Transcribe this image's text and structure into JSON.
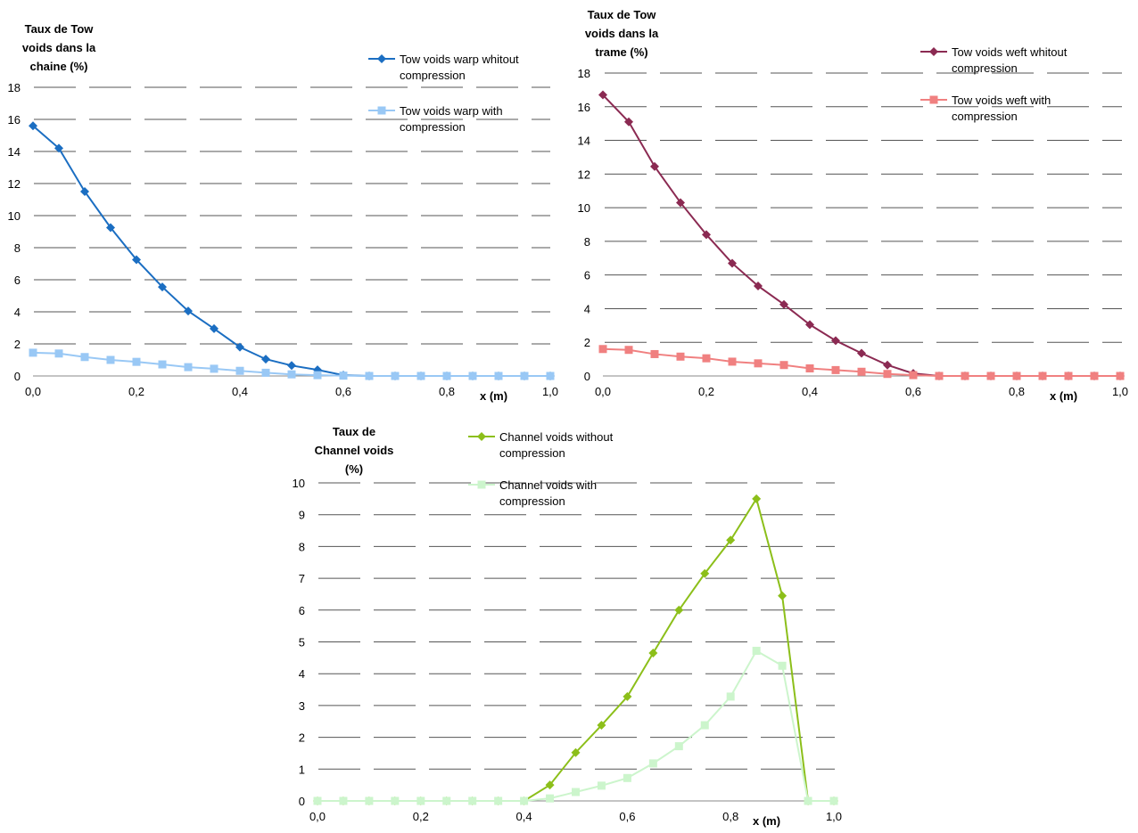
{
  "chart_data": [
    {
      "type": "line",
      "ylabel_lines": [
        "Taux de Tow",
        "voids dans la",
        "chaine (%)"
      ],
      "xlabel": "x (m)",
      "xlim": [
        0,
        1
      ],
      "ylim": [
        0,
        18
      ],
      "x_ticks": [
        "0,0",
        "0,2",
        "0,4",
        "0,6",
        "0,8",
        "1,0"
      ],
      "y_ticks": [
        "0",
        "2",
        "4",
        "6",
        "8",
        "10",
        "12",
        "14",
        "16",
        "18"
      ],
      "grid": "horizontal-dashed",
      "legend_position": "top-right",
      "x": [
        0,
        0.05,
        0.1,
        0.15,
        0.2,
        0.25,
        0.3,
        0.35,
        0.4,
        0.45,
        0.5,
        0.55,
        0.6,
        0.65,
        0.7,
        0.75,
        0.8,
        0.85,
        0.9,
        0.95,
        1.0
      ],
      "series": [
        {
          "name": "Tow voids warp whitout compression",
          "name_lines": [
            "Tow voids warp whitout",
            "compression"
          ],
          "color": "#1b6ec2",
          "marker": "diamond",
          "values": [
            15.6,
            14.2,
            11.5,
            9.25,
            7.25,
            5.55,
            4.05,
            2.95,
            1.8,
            1.05,
            0.65,
            0.38,
            0.05,
            0,
            0,
            0,
            0,
            0,
            0,
            0,
            0
          ]
        },
        {
          "name": "Tow voids warp with compression",
          "name_lines": [
            "Tow voids warp with",
            "compression"
          ],
          "color": "#99c8f5",
          "marker": "square",
          "values": [
            1.45,
            1.4,
            1.18,
            1.0,
            0.88,
            0.72,
            0.55,
            0.45,
            0.32,
            0.2,
            0.1,
            0.05,
            0.02,
            0,
            0,
            0,
            0,
            0,
            0,
            0,
            0
          ]
        }
      ]
    },
    {
      "type": "line",
      "ylabel_lines": [
        "Taux de Tow",
        "voids dans la",
        "trame (%)"
      ],
      "xlabel": "x (m)",
      "xlim": [
        0,
        1
      ],
      "ylim": [
        0,
        18
      ],
      "x_ticks": [
        "0,0",
        "0,2",
        "0,4",
        "0,6",
        "0,8",
        "1,0"
      ],
      "y_ticks": [
        "0",
        "2",
        "4",
        "6",
        "8",
        "10",
        "12",
        "14",
        "16",
        "18"
      ],
      "grid": "horizontal-dashed",
      "legend_position": "top-right",
      "x": [
        0,
        0.05,
        0.1,
        0.15,
        0.2,
        0.25,
        0.3,
        0.35,
        0.4,
        0.45,
        0.5,
        0.55,
        0.6,
        0.65,
        0.7,
        0.75,
        0.8,
        0.85,
        0.9,
        0.95,
        1.0
      ],
      "series": [
        {
          "name": "Tow voids weft whitout compression",
          "name_lines": [
            "Tow voids weft whitout",
            "compression"
          ],
          "color": "#8b2a52",
          "marker": "diamond",
          "values": [
            16.7,
            15.1,
            12.45,
            10.3,
            8.4,
            6.7,
            5.35,
            4.25,
            3.05,
            2.1,
            1.35,
            0.65,
            0.15,
            0,
            0,
            0,
            0,
            0,
            0,
            0,
            0
          ]
        },
        {
          "name": "Tow voids weft with compression",
          "name_lines": [
            "Tow voids weft with",
            "compression"
          ],
          "color": "#f08080",
          "marker": "square",
          "values": [
            1.6,
            1.55,
            1.3,
            1.15,
            1.05,
            0.85,
            0.75,
            0.65,
            0.45,
            0.35,
            0.25,
            0.12,
            0.05,
            0,
            0,
            0,
            0,
            0,
            0,
            0,
            0
          ]
        }
      ]
    },
    {
      "type": "line",
      "ylabel_lines": [
        "Taux de",
        "Channel voids",
        "(%)"
      ],
      "xlabel": "x (m)",
      "xlim": [
        0,
        1
      ],
      "ylim": [
        0,
        10
      ],
      "x_ticks": [
        "0,0",
        "0,2",
        "0,4",
        "0,6",
        "0,8",
        "1,0"
      ],
      "y_ticks": [
        "0",
        "1",
        "2",
        "3",
        "4",
        "5",
        "6",
        "7",
        "8",
        "9",
        "10"
      ],
      "grid": "horizontal-dashed",
      "legend_position": "top-right",
      "x": [
        0,
        0.05,
        0.1,
        0.15,
        0.2,
        0.25,
        0.3,
        0.35,
        0.4,
        0.45,
        0.5,
        0.55,
        0.6,
        0.65,
        0.7,
        0.75,
        0.8,
        0.85,
        0.9,
        0.95,
        1.0
      ],
      "series": [
        {
          "name": "Channel voids without compression",
          "name_lines": [
            "Channel voids without",
            "compression"
          ],
          "color": "#8cbf1a",
          "marker": "diamond",
          "values": [
            0,
            0,
            0,
            0,
            0,
            0,
            0,
            0,
            0,
            0.5,
            1.52,
            2.38,
            3.28,
            4.65,
            6.0,
            7.15,
            8.2,
            9.5,
            6.45,
            0,
            0
          ]
        },
        {
          "name": "Channel voids with compression",
          "name_lines": [
            "Channel voids with",
            "compression"
          ],
          "color": "#ccf5cc",
          "marker": "square",
          "values": [
            0,
            0,
            0,
            0,
            0,
            0,
            0,
            0,
            0,
            0.08,
            0.28,
            0.48,
            0.72,
            1.18,
            1.72,
            2.38,
            3.28,
            4.72,
            4.25,
            0,
            0
          ]
        }
      ]
    }
  ]
}
